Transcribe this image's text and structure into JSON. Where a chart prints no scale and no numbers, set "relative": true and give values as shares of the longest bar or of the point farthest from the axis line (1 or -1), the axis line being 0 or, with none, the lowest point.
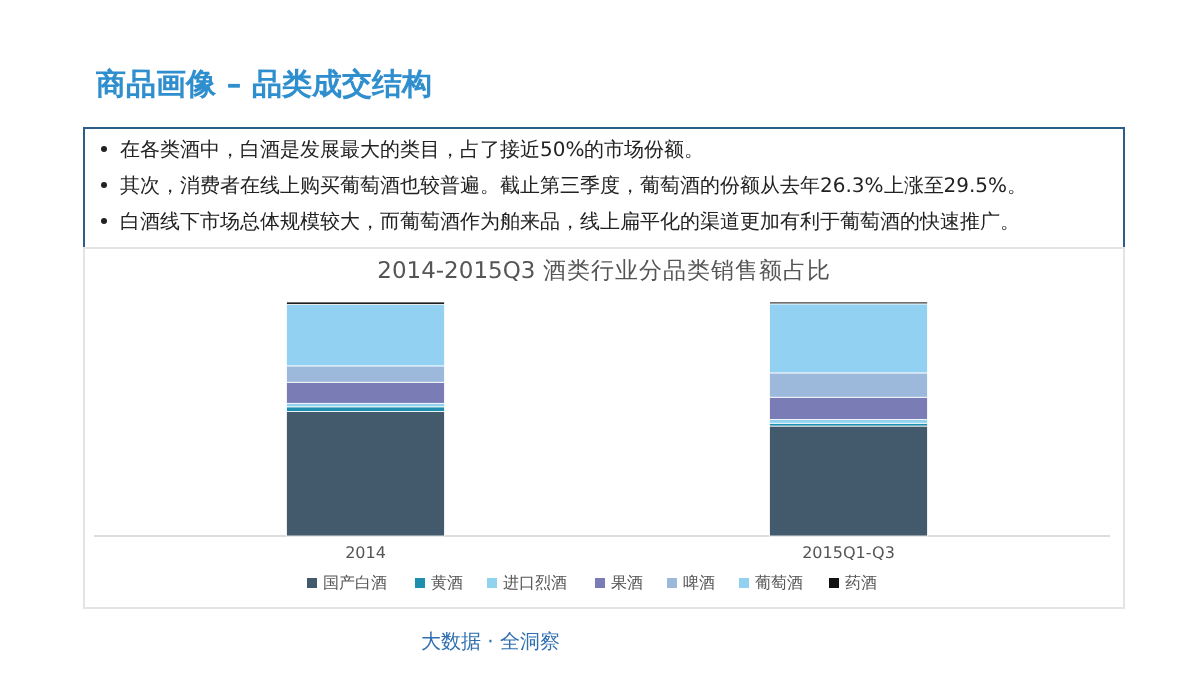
{
  "chart_data": {
    "type": "bar",
    "stacked": true,
    "relative": true,
    "title": "商品画像 – 品类成交结构",
    "subtitle": "2014-2015Q3 酒类行业分品类销售额占比",
    "categories": [
      "2014",
      "2015Q1-Q3"
    ],
    "series": [
      {
        "name": "国产白酒",
        "color": "#435a6d",
        "values": [
          0.532,
          0.47
        ]
      },
      {
        "name": "黄酒",
        "color": "#1f8fb0",
        "values": [
          0.02,
          0.012
        ]
      },
      {
        "name": "进口烈酒",
        "color": "#8fd3ee",
        "values": [
          0.015,
          0.016
        ]
      },
      {
        "name": "果酒",
        "color": "#7a7db5",
        "values": [
          0.09,
          0.095
        ]
      },
      {
        "name": "啤酒",
        "color": "#9cb9dc",
        "values": [
          0.07,
          0.104
        ]
      },
      {
        "name": "葡萄酒",
        "color": "#92d1f1",
        "values": [
          0.263,
          0.295
        ]
      },
      {
        "name": "药酒",
        "color": "#111111",
        "values": [
          0.01,
          0.008
        ]
      }
    ],
    "legend": "bottom",
    "annotations": [
      "在各类酒中，白酒是发展最大的类目，占了接近50%的市场份额。",
      "其次，消费者在线上购买葡萄酒也较普遍。截止第三季度，葡萄酒的份额从去年26.3%上涨至29.5%。",
      "白酒线下市场总体规模较大，而葡萄酒作为舶来品，线上扁平化的渠道更加有利于葡萄酒的快速推广。",
      "大数据 · 全洞察"
    ]
  }
}
